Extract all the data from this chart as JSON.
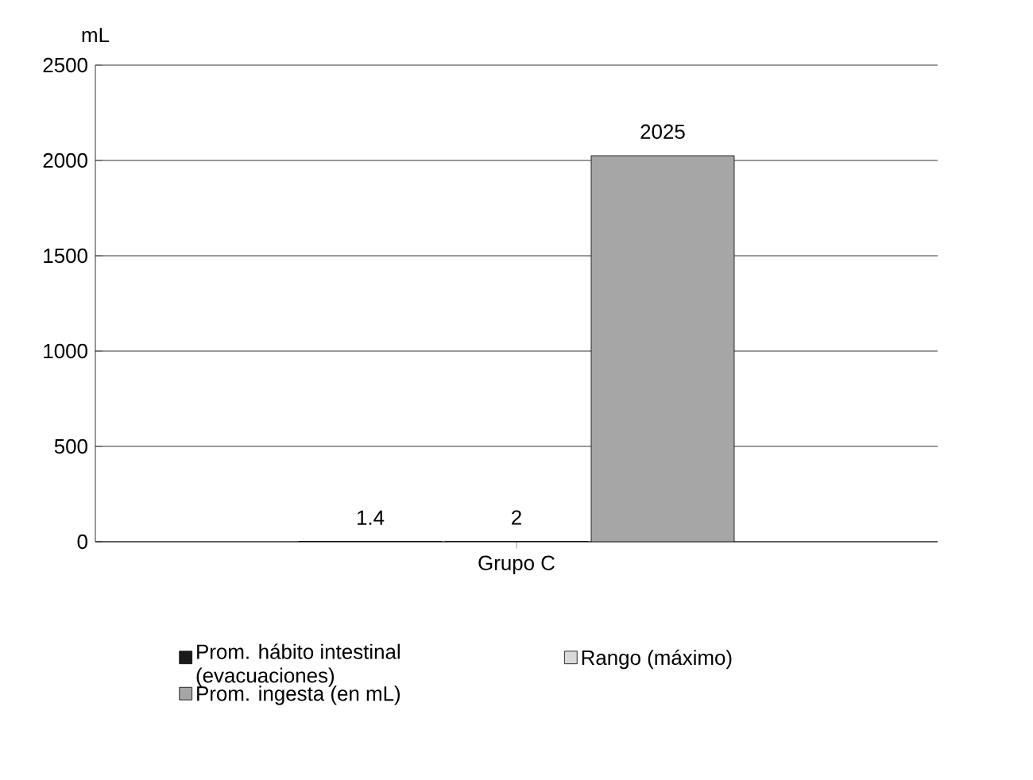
{
  "chart_data": {
    "type": "bar",
    "ylabel": "mL",
    "categories": [
      "Grupo C"
    ],
    "series": [
      {
        "name": "Prom. hábito intestinal (evacuaciones)",
        "color": "#1a1a1a",
        "values": [
          1.4
        ]
      },
      {
        "name": "Rango (máximo)",
        "color": "#d9d9d9",
        "values": [
          2
        ]
      },
      {
        "name": "Prom. ingesta (en mL)",
        "color": "#a6a6a6",
        "values": [
          2025
        ]
      }
    ],
    "ylim": [
      0,
      2500
    ],
    "yticks": [
      0,
      500,
      1000,
      1500,
      2000,
      2500
    ],
    "grid": "y",
    "legend": "bottom",
    "data_labels": true
  }
}
